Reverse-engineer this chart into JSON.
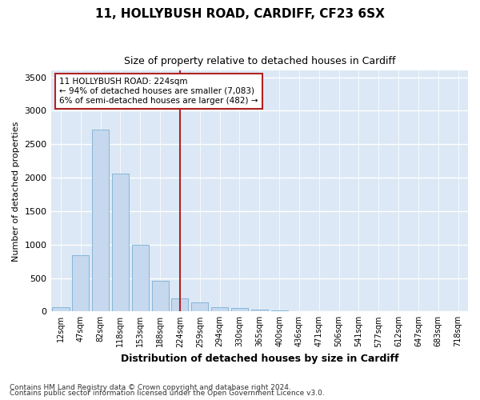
{
  "title1": "11, HOLLYBUSH ROAD, CARDIFF, CF23 6SX",
  "title2": "Size of property relative to detached houses in Cardiff",
  "xlabel": "Distribution of detached houses by size in Cardiff",
  "ylabel": "Number of detached properties",
  "categories": [
    "12sqm",
    "47sqm",
    "82sqm",
    "118sqm",
    "153sqm",
    "188sqm",
    "224sqm",
    "259sqm",
    "294sqm",
    "330sqm",
    "365sqm",
    "400sqm",
    "436sqm",
    "471sqm",
    "506sqm",
    "541sqm",
    "577sqm",
    "612sqm",
    "647sqm",
    "683sqm",
    "718sqm"
  ],
  "values": [
    60,
    840,
    2720,
    2060,
    1000,
    460,
    200,
    140,
    60,
    50,
    30,
    15,
    8,
    5,
    3,
    1,
    1,
    0,
    0,
    0,
    0
  ],
  "bar_color": "#c5d8ee",
  "bar_edge_color": "#7aafd4",
  "vline_x": 6,
  "vline_color": "#b22222",
  "annotation_line1": "11 HOLLYBUSH ROAD: 224sqm",
  "annotation_line2": "← 94% of detached houses are smaller (7,083)",
  "annotation_line3": "6% of semi-detached houses are larger (482) →",
  "annotation_box_color": "#b22222",
  "ylim": [
    0,
    3600
  ],
  "yticks": [
    0,
    500,
    1000,
    1500,
    2000,
    2500,
    3000,
    3500
  ],
  "fig_bg_color": "#ffffff",
  "plot_bg_color": "#dce8f5",
  "grid_color": "#ffffff",
  "footnote1": "Contains HM Land Registry data © Crown copyright and database right 2024.",
  "footnote2": "Contains public sector information licensed under the Open Government Licence v3.0."
}
